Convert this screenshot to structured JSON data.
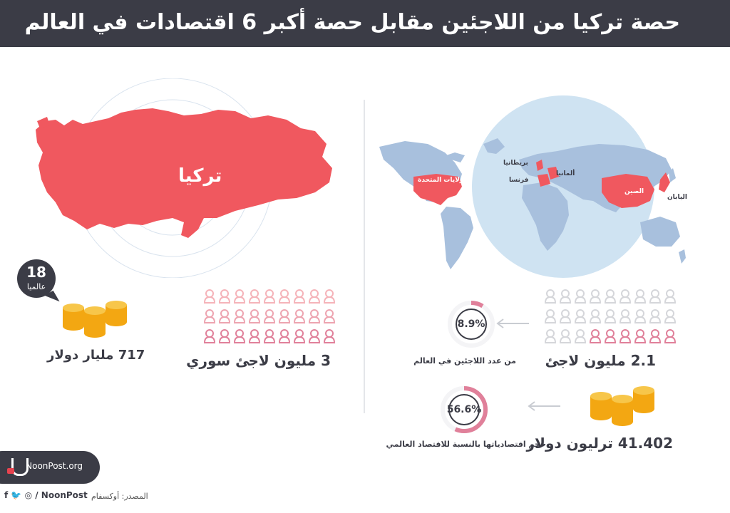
{
  "title": "حصة تركيا من اللاجئين مقابل حصة أكبر 6 اقتصادات في العالم",
  "turkey": {
    "map_label": "تركيا",
    "rank_number": "18",
    "rank_word": "عالميا",
    "gdp": "717  مليار دولار",
    "refugees": "3 مليون لاجئ سوري"
  },
  "world": {
    "labels": {
      "usa": "الولايات المتحدة",
      "uk": "بريطانيا",
      "germany": "ألمانيا",
      "france": "فرنسا",
      "china": "الصين",
      "japan": "اليابان"
    },
    "refugees": "2.1 مليون لاجئ",
    "refugee_share": "8.9%",
    "refugee_share_value": 8.9,
    "refugee_share_caption": "من عدد اللاجئين في العالم",
    "gdp": "41.402 ترليون دولار",
    "economy_share": "56.6%",
    "economy_share_value": 56.6,
    "economy_share_caption": "حجم اقتصادياتها بالنسبة للاقتصاد العالمي"
  },
  "colors": {
    "accent": "#f0585f",
    "pink": "#e0809a",
    "light_pink": "#f5b3b9",
    "gray": "#d5d6da",
    "dark": "#3b3c46",
    "gold": "#f7b731",
    "ocean": "#cfe3f2",
    "land": "#a8c0dd"
  },
  "footer": {
    "site": "NoonPost.org",
    "social_handle": "/ NoonPost",
    "source": "المصدر: أوكسفام"
  }
}
